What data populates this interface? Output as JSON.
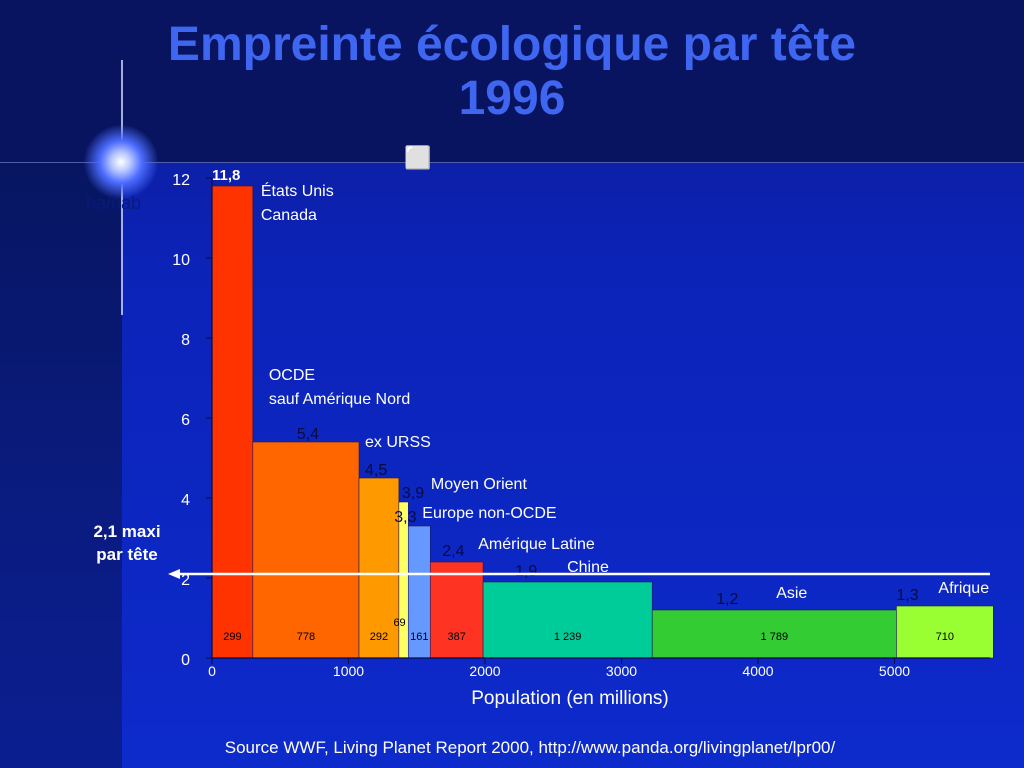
{
  "slide": {
    "title_line1": "Empreinte écologique par tête",
    "title_line2": "1996",
    "corner_text": "ha/hab",
    "glyph": "⬜",
    "limit_label_line1": "2,1 maxi",
    "limit_label_line2": "par tête",
    "source": "Source WWF, Living Planet Report 2000, http://www.panda.org/livingplanet/lpr00/"
  },
  "chart_data": {
    "type": "bar",
    "xlabel": "Population (en millions)",
    "ylabel": "",
    "xlim": [
      0,
      5700
    ],
    "ylim": [
      0,
      12
    ],
    "yticks": [
      0,
      2,
      4,
      6,
      8,
      10,
      12
    ],
    "xticks": [
      0,
      1000,
      2000,
      3000,
      4000,
      5000
    ],
    "limit_value": 2.1,
    "bars": [
      {
        "name_lines": [
          "États Unis",
          "Canada"
        ],
        "value_label": "11,8",
        "value": 11.8,
        "population": 299,
        "pop_label": "299",
        "color": "#ff3300"
      },
      {
        "name_lines": [
          "OCDE",
          "sauf Amérique Nord"
        ],
        "value_label": "5,4",
        "value": 5.4,
        "population": 778,
        "pop_label": "778",
        "color": "#ff6600"
      },
      {
        "name_lines": [
          "ex URSS"
        ],
        "value_label": "4,5",
        "value": 4.5,
        "population": 292,
        "pop_label": "292",
        "color": "#ff9900"
      },
      {
        "name_lines": [
          "Moyen Orient"
        ],
        "value_label": "3,9",
        "value": 3.9,
        "population": 69,
        "pop_label": "69",
        "color": "#ffff66"
      },
      {
        "name_lines": [
          "Europe non-OCDE"
        ],
        "value_label": "3,3",
        "value": 3.3,
        "population": 161,
        "pop_label": "161",
        "color": "#6699ff"
      },
      {
        "name_lines": [
          "Amérique Latine"
        ],
        "value_label": "2,4",
        "value": 2.4,
        "population": 387,
        "pop_label": "387",
        "color": "#ff3322"
      },
      {
        "name_lines": [
          "Chine"
        ],
        "value_label": "1,9",
        "value": 1.9,
        "population": 1239,
        "pop_label": "1 239",
        "color": "#00cc99"
      },
      {
        "name_lines": [
          "Asie"
        ],
        "value_label": "1,2",
        "value": 1.2,
        "population": 1789,
        "pop_label": "1 789",
        "color": "#33cc33"
      },
      {
        "name_lines": [
          "Afrique"
        ],
        "value_label": "1,3",
        "value": 1.3,
        "population": 710,
        "pop_label": "710",
        "color": "#99ff33"
      }
    ]
  }
}
